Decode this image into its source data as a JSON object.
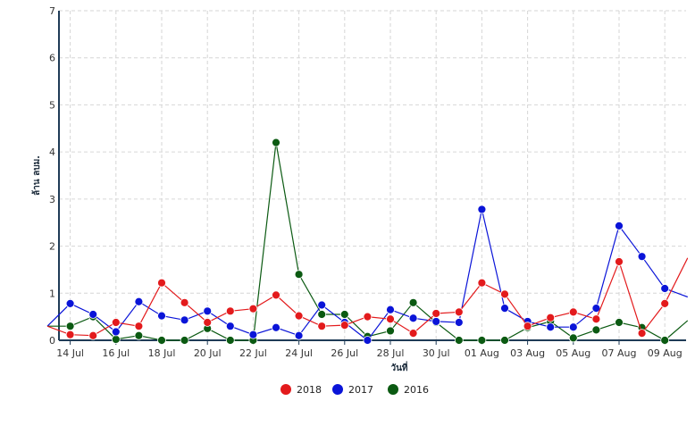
{
  "chart_data": {
    "type": "line",
    "title": "",
    "xlabel": "วันที่",
    "ylabel": "ล้าน ลบม.",
    "ylim": [
      0,
      7
    ],
    "yticks": [
      0,
      1,
      2,
      3,
      4,
      5,
      6,
      7
    ],
    "grid": true,
    "legend_position": "bottom-center",
    "x": [
      "13 Jul",
      "14 Jul",
      "15 Jul",
      "16 Jul",
      "17 Jul",
      "18 Jul",
      "19 Jul",
      "20 Jul",
      "21 Jul",
      "22 Jul",
      "23 Jul",
      "24 Jul",
      "25 Jul",
      "26 Jul",
      "27 Jul",
      "28 Jul",
      "29 Jul",
      "30 Jul",
      "31 Jul",
      "01 Aug",
      "02 Aug",
      "03 Aug",
      "04 Aug",
      "05 Aug",
      "06 Aug",
      "07 Aug",
      "08 Aug",
      "09 Aug",
      "10 Aug"
    ],
    "xtick_labels": [
      "14 Jul",
      "16 Jul",
      "18 Jul",
      "20 Jul",
      "22 Jul",
      "24 Jul",
      "26 Jul",
      "28 Jul",
      "30 Jul",
      "01 Aug",
      "03 Aug",
      "05 Aug",
      "07 Aug",
      "09 Aug"
    ],
    "series": [
      {
        "name": "2018",
        "color": "#e31a1c",
        "values": [
          0.3,
          0.12,
          0.1,
          0.38,
          0.3,
          1.22,
          0.8,
          0.38,
          0.62,
          0.67,
          0.96,
          0.52,
          0.3,
          0.32,
          0.5,
          0.45,
          0.15,
          0.57,
          0.6,
          1.22,
          0.98,
          0.3,
          0.48,
          0.6,
          0.45,
          1.67,
          0.15,
          0.78,
          1.75
        ]
      },
      {
        "name": "2017",
        "color": "#0a14d8",
        "values": [
          0.3,
          0.78,
          0.55,
          0.18,
          0.82,
          0.52,
          0.43,
          0.62,
          0.3,
          0.12,
          0.27,
          0.1,
          0.75,
          0.38,
          0.0,
          0.65,
          0.47,
          0.4,
          0.38,
          2.78,
          0.68,
          0.4,
          0.28,
          0.28,
          0.68,
          2.43,
          1.78,
          1.1,
          0.92
        ]
      },
      {
        "name": "2016",
        "color": "#0b5a12",
        "values": [
          0.3,
          0.3,
          0.5,
          0.02,
          0.1,
          0.0,
          0.0,
          0.25,
          0.0,
          0.0,
          4.2,
          1.4,
          0.55,
          0.55,
          0.08,
          0.2,
          0.8,
          0.38,
          0.0,
          0.0,
          0.0,
          0.27,
          0.4,
          0.05,
          0.22,
          0.38,
          0.27,
          0.0,
          0.42
        ]
      }
    ]
  }
}
